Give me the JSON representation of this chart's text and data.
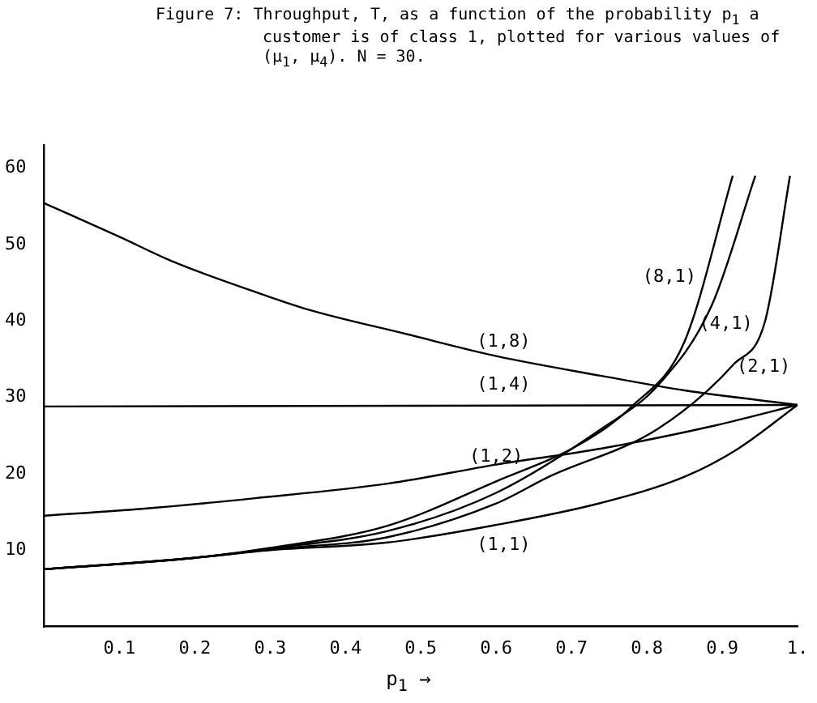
{
  "chart_data": {
    "type": "line",
    "title": "Figure 7:  Throughput, T, as a function of the probability p$_{1}$ a customer is of class 1, plotted for various values of (μ$_{1}$, μ$_{4}$).  N = 30.",
    "xlabel": "p$_{1}$ →",
    "xlim": [
      0,
      1
    ],
    "ylim": [
      0,
      63
    ],
    "xticks": [
      0.1,
      0.2,
      0.3,
      0.4,
      0.5,
      0.6,
      0.7,
      0.8,
      0.9,
      {
        "value": 1,
        "label": "1."
      }
    ],
    "yticks": [
      10,
      20,
      30,
      40,
      50,
      60
    ],
    "grid": false,
    "legend": false,
    "marker": "none",
    "line_style": "solid",
    "series": [
      {
        "name": "(1,8)",
        "color": "#000000",
        "x": [
          0,
          0.1,
          0.17,
          0.28,
          0.35,
          0.48,
          0.6,
          0.74,
          0.85,
          1
        ],
        "values": [
          55.4,
          51,
          47.8,
          43.8,
          41.5,
          38.3,
          35.4,
          32.8,
          30.9,
          29
        ]
      },
      {
        "name": "(1,4)",
        "color": "#000000",
        "x": [
          0,
          0.5,
          1
        ],
        "values": [
          28.8,
          28.9,
          29
        ]
      },
      {
        "name": "(1,2)",
        "color": "#000000",
        "x": [
          0,
          0.13,
          0.28,
          0.456,
          0.6,
          0.74,
          0.89,
          1
        ],
        "values": [
          14.5,
          15.4,
          16.8,
          18.7,
          21.2,
          23.3,
          26.3,
          29
        ]
      },
      {
        "name": "(1,1)",
        "color": "#000000",
        "x": [
          0,
          0.2,
          0.3,
          0.456,
          0.6,
          0.74,
          0.85,
          0.92,
          1
        ],
        "values": [
          7.5,
          9,
          10,
          11,
          13.3,
          16.2,
          19.6,
          23.2,
          29
        ]
      },
      {
        "name": "(2,1)",
        "color": "#000000",
        "x": [
          0,
          0.2,
          0.3,
          0.456,
          0.6,
          0.67,
          0.815,
          0.915,
          0.957,
          0.99
        ],
        "values": [
          7.5,
          9,
          10.1,
          11.7,
          16.1,
          19.6,
          25.9,
          34.3,
          40,
          59
        ]
      },
      {
        "name": "(4,1)",
        "color": "#000000",
        "x": [
          0,
          0.2,
          0.3,
          0.456,
          0.6,
          0.74,
          0.815,
          0.886,
          0.944
        ],
        "values": [
          7.5,
          9,
          10.2,
          12.5,
          17.5,
          25.9,
          31.6,
          42,
          59
        ]
      },
      {
        "name": "(8,1)",
        "color": "#000000",
        "x": [
          0,
          0.2,
          0.3,
          0.456,
          0.6,
          0.71,
          0.78,
          0.85,
          0.914
        ],
        "values": [
          7.5,
          9,
          10.3,
          13.2,
          19,
          23.8,
          28.8,
          37.3,
          59
        ]
      }
    ]
  }
}
